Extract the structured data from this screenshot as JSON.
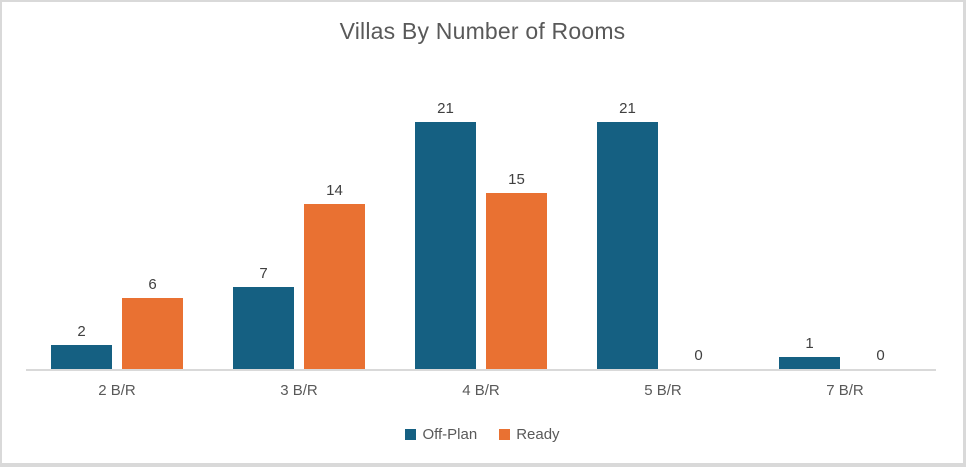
{
  "colors": {
    "frame_border": "#D9D9D9",
    "axis_line": "#D9D9D9",
    "title_text": "#595959",
    "axis_label_text": "#595959",
    "data_label_text": "#404040",
    "legend_text": "#595959",
    "off_plan": "#156082",
    "ready": "#E97132"
  },
  "chart_data": {
    "type": "bar",
    "title": "Villas By Number of Rooms",
    "categories": [
      "2 B/R",
      "3 B/R",
      "4 B/R",
      "5 B/R",
      "7 B/R"
    ],
    "series": [
      {
        "name": "Off-Plan",
        "color": "#156082",
        "values": [
          2,
          7,
          21,
          21,
          1
        ]
      },
      {
        "name": "Ready",
        "color": "#E97132",
        "values": [
          6,
          14,
          15,
          0,
          0
        ]
      }
    ],
    "xlabel": "",
    "ylabel": "",
    "ylim": [
      0,
      21
    ],
    "y_axis_visible": false,
    "gridlines": false,
    "data_labels": true,
    "legend_position": "bottom"
  }
}
